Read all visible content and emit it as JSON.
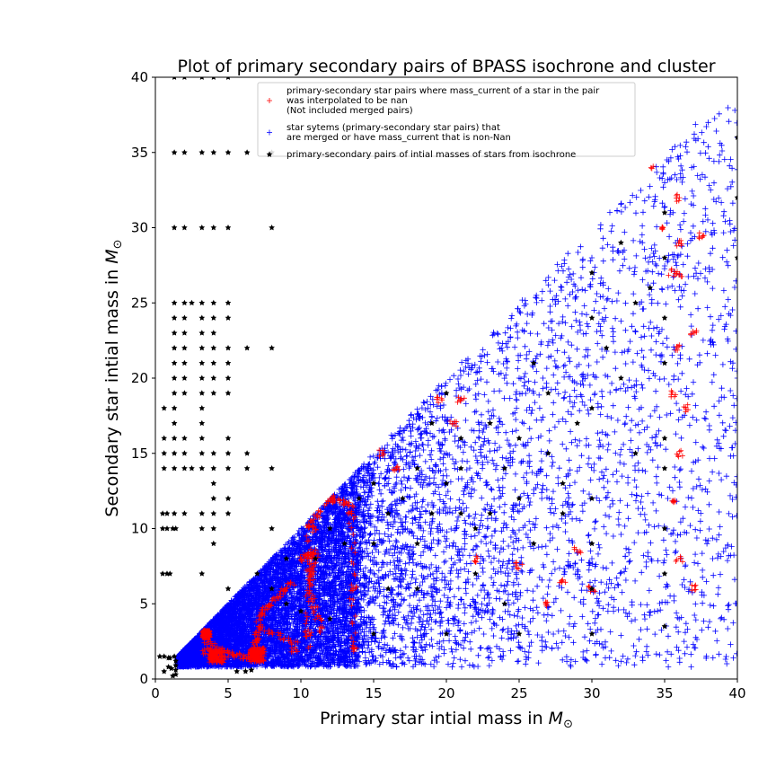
{
  "chart_data": {
    "type": "scatter",
    "title": "Plot of primary secondary pairs of BPASS isochrone and cluster",
    "xlabel": "Primary star intial mass in",
    "ylabel": "Secondary star intial mass in",
    "xunit": "M",
    "yunit": "M",
    "xlim": [
      0,
      40
    ],
    "ylim": [
      0,
      40
    ],
    "xticks": [
      "0",
      "5",
      "10",
      "15",
      "20",
      "25",
      "30",
      "35",
      "40"
    ],
    "yticks": [
      "0",
      "5",
      "10",
      "15",
      "20",
      "25",
      "30",
      "35",
      "40"
    ],
    "grid": false,
    "legend_position": "top-center",
    "legend": [
      {
        "lines": [
          "primary-secondary star pairs where mass_current of a star in the pair",
          " was interpolated to be nan",
          " (Not included merged pairs)"
        ],
        "color": "#ff0000",
        "marker": "+"
      },
      {
        "lines": [
          "star sytems (primary-secondary star pairs) that",
          "are merged or have mass_current that is non-Nan"
        ],
        "color": "#0000ff",
        "marker": "+"
      },
      {
        "lines": [
          "primary-secondary pairs of intial masses of stars from isochrone"
        ],
        "color": "#000000",
        "marker": "star"
      }
    ],
    "series": [
      {
        "name": "star sytems (primary-secondary star pairs) that are merged or have mass_current that is non-Nan",
        "color": "#0000ff",
        "marker": "+",
        "distribution": "dense scatter over region 0.8 <= secondary <= primary, primary 1.5 to 40, densest below primary 14",
        "points": [
          [
            3,
            1.5
          ],
          [
            6,
            2
          ],
          [
            10,
            8
          ],
          [
            16,
            10
          ],
          [
            20,
            15
          ],
          [
            25,
            20
          ],
          [
            30,
            28
          ],
          [
            35,
            33
          ],
          [
            38,
            37
          ],
          [
            40,
            36
          ],
          [
            22,
            5
          ],
          [
            30,
            8
          ],
          [
            36,
            4
          ],
          [
            40,
            20
          ]
        ]
      },
      {
        "name": "primary-secondary star pairs where mass_current of a star in the pair was interpolated to be nan (Not included merged pairs)",
        "color": "#ff0000",
        "marker": "+",
        "points": [
          [
            3.5,
            1.8
          ],
          [
            4,
            1.5
          ],
          [
            6.8,
            1.5
          ],
          [
            7,
            2.5
          ],
          [
            9.5,
            2
          ],
          [
            10.5,
            3
          ],
          [
            10.6,
            7
          ],
          [
            10.8,
            10
          ],
          [
            12,
            12
          ],
          [
            13.5,
            11
          ],
          [
            13.6,
            6
          ],
          [
            13.7,
            2
          ],
          [
            15.5,
            15
          ],
          [
            16.5,
            14
          ],
          [
            19.5,
            18.5
          ],
          [
            20.5,
            17
          ],
          [
            21,
            18.5
          ],
          [
            22,
            8
          ],
          [
            25,
            7.5
          ],
          [
            27,
            5
          ],
          [
            28,
            6.5
          ],
          [
            29,
            8.5
          ],
          [
            30,
            6
          ],
          [
            34,
            34
          ],
          [
            35,
            30
          ],
          [
            35.5,
            27
          ],
          [
            36,
            22
          ],
          [
            36,
            27
          ],
          [
            36,
            29
          ],
          [
            36,
            32
          ],
          [
            37,
            23
          ],
          [
            37.5,
            29.5
          ],
          [
            35.5,
            19
          ],
          [
            35.5,
            12
          ],
          [
            36,
            15
          ],
          [
            36.5,
            18
          ],
          [
            36,
            8
          ],
          [
            37,
            6
          ]
        ]
      },
      {
        "name": "primary-secondary pairs of intial masses of stars from isochrone",
        "color": "#000000",
        "marker": "star",
        "points": [
          [
            1.3,
            40
          ],
          [
            2,
            40
          ],
          [
            3.2,
            40
          ],
          [
            4,
            40
          ],
          [
            5,
            40
          ],
          [
            1.3,
            35
          ],
          [
            2,
            35
          ],
          [
            3.2,
            35
          ],
          [
            4,
            35
          ],
          [
            5,
            35
          ],
          [
            6.3,
            35
          ],
          [
            8,
            35
          ],
          [
            1.3,
            30
          ],
          [
            2,
            30
          ],
          [
            3.2,
            30
          ],
          [
            4,
            30
          ],
          [
            5,
            30
          ],
          [
            8,
            30
          ],
          [
            1.3,
            25
          ],
          [
            2,
            25
          ],
          [
            2.5,
            25
          ],
          [
            3.2,
            25
          ],
          [
            4,
            25
          ],
          [
            5,
            25
          ],
          [
            1.3,
            24
          ],
          [
            2,
            24
          ],
          [
            3.2,
            24
          ],
          [
            4,
            24
          ],
          [
            5,
            24
          ],
          [
            1.3,
            23
          ],
          [
            2,
            23
          ],
          [
            3.2,
            23
          ],
          [
            4,
            23
          ],
          [
            1.3,
            22
          ],
          [
            2,
            22
          ],
          [
            3.2,
            22
          ],
          [
            4,
            22
          ],
          [
            5,
            22
          ],
          [
            6.3,
            22
          ],
          [
            8,
            22
          ],
          [
            1.3,
            21
          ],
          [
            2,
            21
          ],
          [
            3.2,
            21
          ],
          [
            4,
            21
          ],
          [
            5,
            21
          ],
          [
            1.3,
            20
          ],
          [
            2,
            20
          ],
          [
            3.2,
            20
          ],
          [
            4,
            20
          ],
          [
            5,
            20
          ],
          [
            1.3,
            19
          ],
          [
            2,
            19
          ],
          [
            3.2,
            19
          ],
          [
            4,
            19
          ],
          [
            5,
            19
          ],
          [
            1.3,
            18
          ],
          [
            3.2,
            18
          ],
          [
            0.6,
            18
          ],
          [
            1.3,
            17
          ],
          [
            3.2,
            17
          ],
          [
            0.6,
            16
          ],
          [
            1.3,
            16
          ],
          [
            2,
            16
          ],
          [
            3.2,
            16
          ],
          [
            5,
            16
          ],
          [
            0.6,
            15
          ],
          [
            1.3,
            15
          ],
          [
            2,
            15
          ],
          [
            3.2,
            15
          ],
          [
            4,
            15
          ],
          [
            5,
            15
          ],
          [
            6.3,
            15
          ],
          [
            0.6,
            14
          ],
          [
            1.3,
            14
          ],
          [
            2,
            14
          ],
          [
            2.5,
            14
          ],
          [
            3.2,
            14
          ],
          [
            4,
            14
          ],
          [
            5,
            14
          ],
          [
            6.3,
            14
          ],
          [
            8,
            14
          ],
          [
            4,
            13
          ],
          [
            4,
            12
          ],
          [
            5,
            12
          ],
          [
            0.5,
            11
          ],
          [
            0.8,
            11
          ],
          [
            1.3,
            11
          ],
          [
            2,
            11
          ],
          [
            3.2,
            11
          ],
          [
            4,
            11
          ],
          [
            5,
            11
          ],
          [
            0.5,
            10
          ],
          [
            0.8,
            10
          ],
          [
            1.2,
            10
          ],
          [
            1.4,
            10
          ],
          [
            3.2,
            10
          ],
          [
            4,
            10
          ],
          [
            8,
            10
          ],
          [
            4,
            9
          ],
          [
            0.5,
            7
          ],
          [
            0.8,
            7
          ],
          [
            1,
            7
          ],
          [
            3.2,
            7
          ],
          [
            5,
            6
          ],
          [
            5.6,
            0.5
          ],
          [
            6.2,
            0.5
          ],
          [
            6.6,
            0.6
          ],
          [
            0.3,
            1.5
          ],
          [
            0.6,
            1.5
          ],
          [
            0.9,
            1.4
          ],
          [
            1.3,
            1.5
          ],
          [
            1.4,
            1.2
          ],
          [
            1.4,
            0.9
          ],
          [
            1.4,
            0.6
          ],
          [
            1.4,
            0.3
          ],
          [
            1.2,
            0.2
          ],
          [
            0.6,
            0.5
          ],
          [
            0.9,
            0.8
          ],
          [
            1,
            1.4
          ],
          [
            1.1,
            0.7
          ],
          [
            7,
            7
          ],
          [
            8,
            6
          ],
          [
            9,
            5
          ],
          [
            9,
            8
          ],
          [
            11,
            8
          ],
          [
            12,
            10
          ],
          [
            13,
            9
          ],
          [
            14,
            12
          ],
          [
            15,
            9
          ],
          [
            15,
            13
          ],
          [
            16,
            11
          ],
          [
            17,
            12
          ],
          [
            18,
            9
          ],
          [
            18,
            14
          ],
          [
            19,
            17
          ],
          [
            20,
            13
          ],
          [
            20,
            19
          ],
          [
            21,
            16
          ],
          [
            21,
            11
          ],
          [
            22,
            10
          ],
          [
            23,
            17
          ],
          [
            24,
            14
          ],
          [
            25,
            16
          ],
          [
            25,
            12
          ],
          [
            26,
            21
          ],
          [
            27,
            15
          ],
          [
            28,
            11
          ],
          [
            30,
            12
          ],
          [
            30,
            18
          ],
          [
            30,
            27
          ],
          [
            32,
            20
          ],
          [
            33,
            25
          ],
          [
            33,
            15
          ],
          [
            35,
            21
          ],
          [
            35,
            24
          ],
          [
            35,
            31
          ],
          [
            35,
            28
          ],
          [
            35,
            16
          ],
          [
            35,
            14
          ],
          [
            35,
            10
          ],
          [
            35,
            7
          ],
          [
            35,
            3.5
          ],
          [
            40,
            28
          ],
          [
            40,
            32
          ],
          [
            40,
            36
          ],
          [
            30,
            3
          ],
          [
            30,
            6
          ],
          [
            30,
            9
          ],
          [
            30,
            24
          ],
          [
            25,
            3
          ],
          [
            20,
            3
          ],
          [
            15,
            3
          ],
          [
            12,
            4
          ],
          [
            10,
            4.5
          ],
          [
            22,
            7
          ],
          [
            18,
            6
          ],
          [
            16,
            6
          ],
          [
            24,
            5
          ],
          [
            26,
            9
          ],
          [
            28,
            13
          ],
          [
            23,
            11
          ],
          [
            19,
            11
          ],
          [
            21,
            14
          ],
          [
            27,
            19
          ],
          [
            29,
            17
          ],
          [
            31,
            22
          ],
          [
            34,
            26
          ],
          [
            32,
            29
          ]
        ]
      }
    ]
  }
}
